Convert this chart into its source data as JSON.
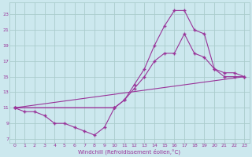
{
  "background_color": "#cce8ee",
  "grid_color": "#aacccc",
  "line_color": "#993399",
  "marker_color": "#993399",
  "xlabel": "Windchill (Refroidissement éolien,°C)",
  "xlabel_color": "#993399",
  "xlim": [
    -0.5,
    23.5
  ],
  "ylim": [
    6.5,
    24.5
  ],
  "xticks": [
    0,
    1,
    2,
    3,
    4,
    5,
    6,
    7,
    8,
    9,
    10,
    11,
    12,
    13,
    14,
    15,
    16,
    17,
    18,
    19,
    20,
    21,
    22,
    23
  ],
  "yticks": [
    7,
    9,
    11,
    13,
    15,
    17,
    19,
    21,
    23
  ],
  "lines": [
    {
      "x": [
        0,
        1,
        2,
        3,
        4,
        5,
        6,
        7,
        8,
        9,
        10
      ],
      "y": [
        11,
        10.5,
        10.5,
        10,
        9.0,
        9.0,
        8.5,
        8.0,
        7.5,
        8.5,
        11
      ],
      "with_markers": true,
      "linestyle": "-"
    },
    {
      "x": [
        0,
        23
      ],
      "y": [
        11,
        15
      ],
      "with_markers": false,
      "linestyle": "-"
    },
    {
      "x": [
        0,
        10,
        11,
        12,
        13,
        14,
        15,
        16,
        17,
        18,
        19,
        20,
        21,
        22,
        23
      ],
      "y": [
        11,
        11,
        12,
        13.5,
        15,
        17,
        18,
        18,
        20.5,
        18,
        17.5,
        16,
        15.5,
        15.5,
        15
      ],
      "with_markers": true,
      "linestyle": "-"
    },
    {
      "x": [
        0,
        10,
        11,
        12,
        13,
        14,
        15,
        16,
        17,
        18,
        19,
        20,
        21,
        22,
        23
      ],
      "y": [
        11,
        11,
        12,
        14,
        16,
        19,
        21.5,
        23.5,
        23.5,
        21,
        20.5,
        16,
        15,
        15,
        15
      ],
      "with_markers": true,
      "linestyle": "-"
    }
  ]
}
